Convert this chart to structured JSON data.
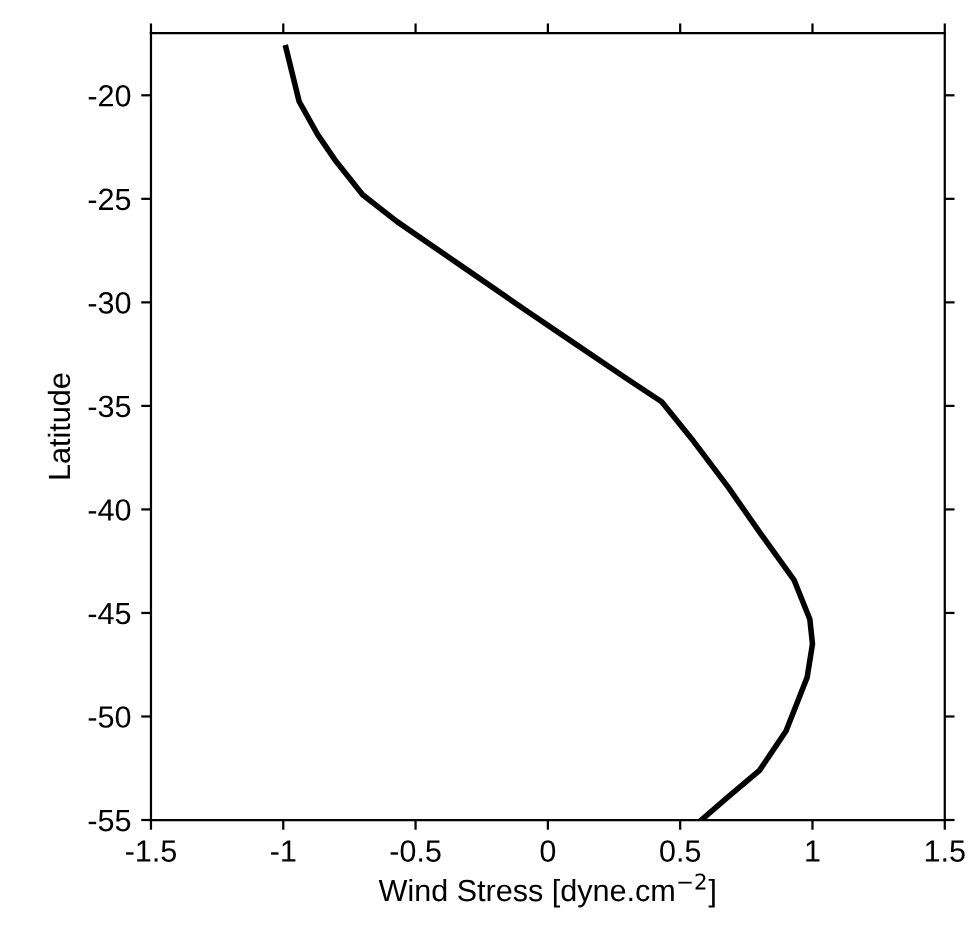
{
  "chart_data": {
    "type": "line",
    "xlabel": "Wind Stress [dyne.cm$^{−2}$]",
    "ylabel": "Latitude",
    "series": [
      {
        "color": "#000000",
        "x": [
          -0.99,
          -0.94,
          -0.87,
          -0.8,
          -0.7,
          -0.57,
          -0.32,
          -0.07,
          0.08,
          0.3,
          0.43,
          0.55,
          0.68,
          0.8,
          0.93,
          0.99,
          1.0,
          0.98,
          0.9,
          0.8,
          0.68,
          0.58
        ],
        "values": [
          -17.7,
          -20.3,
          -21.9,
          -23.2,
          -24.8,
          -26.1,
          -28.3,
          -30.5,
          -31.8,
          -33.7,
          -34.8,
          -36.7,
          -38.9,
          -41.1,
          -43.4,
          -45.3,
          -46.5,
          -48.1,
          -50.7,
          -52.6,
          -53.9,
          -55
        ]
      }
    ],
    "xlim": [
      -1.5,
      1.5
    ],
    "ylim": [
      -55,
      -17
    ],
    "xticks": [
      -1.5,
      -1,
      -0.5,
      0,
      0.5,
      1,
      1.5
    ],
    "yticks": [
      -55,
      -50,
      -45,
      -40,
      -35,
      -30,
      -25,
      -20
    ],
    "grid": false,
    "legend": false,
    "marker": "none",
    "line_style": "solid"
  }
}
